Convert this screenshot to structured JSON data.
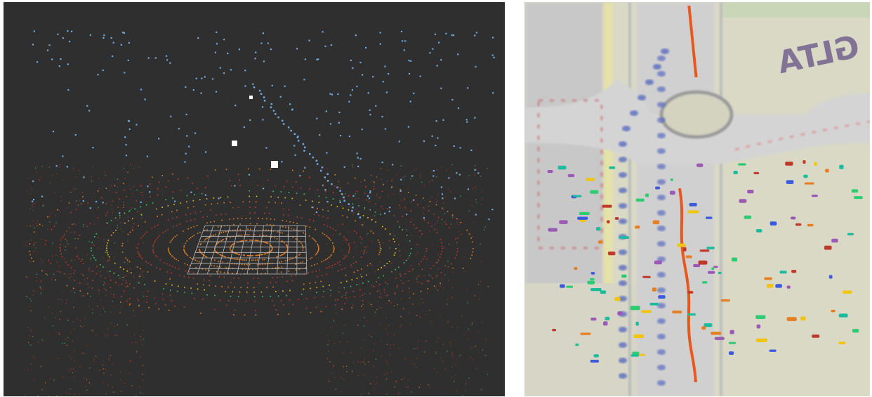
{
  "scene": {
    "left_view": {
      "type": "3d-lidar-point-cloud",
      "background": "#2f2f2f",
      "grid": true
    },
    "right_view": {
      "type": "top-down-map-overlay",
      "background": "#dcdccd",
      "map_text": "GLTA"
    }
  },
  "colors": {
    "point_blue": "#6fa8dc",
    "point_red": "#c0392b",
    "point_orange": "#e67e22",
    "point_yellow": "#f1c40f",
    "point_green": "#2ecc71",
    "point_cyan": "#1abc9c",
    "marker_white": "#ffffff",
    "road_gray": "#c8c8c8",
    "lane_blue": "#5a6cc0",
    "track_orange": "#e8581c",
    "map_purple": "#6a5a8a"
  }
}
